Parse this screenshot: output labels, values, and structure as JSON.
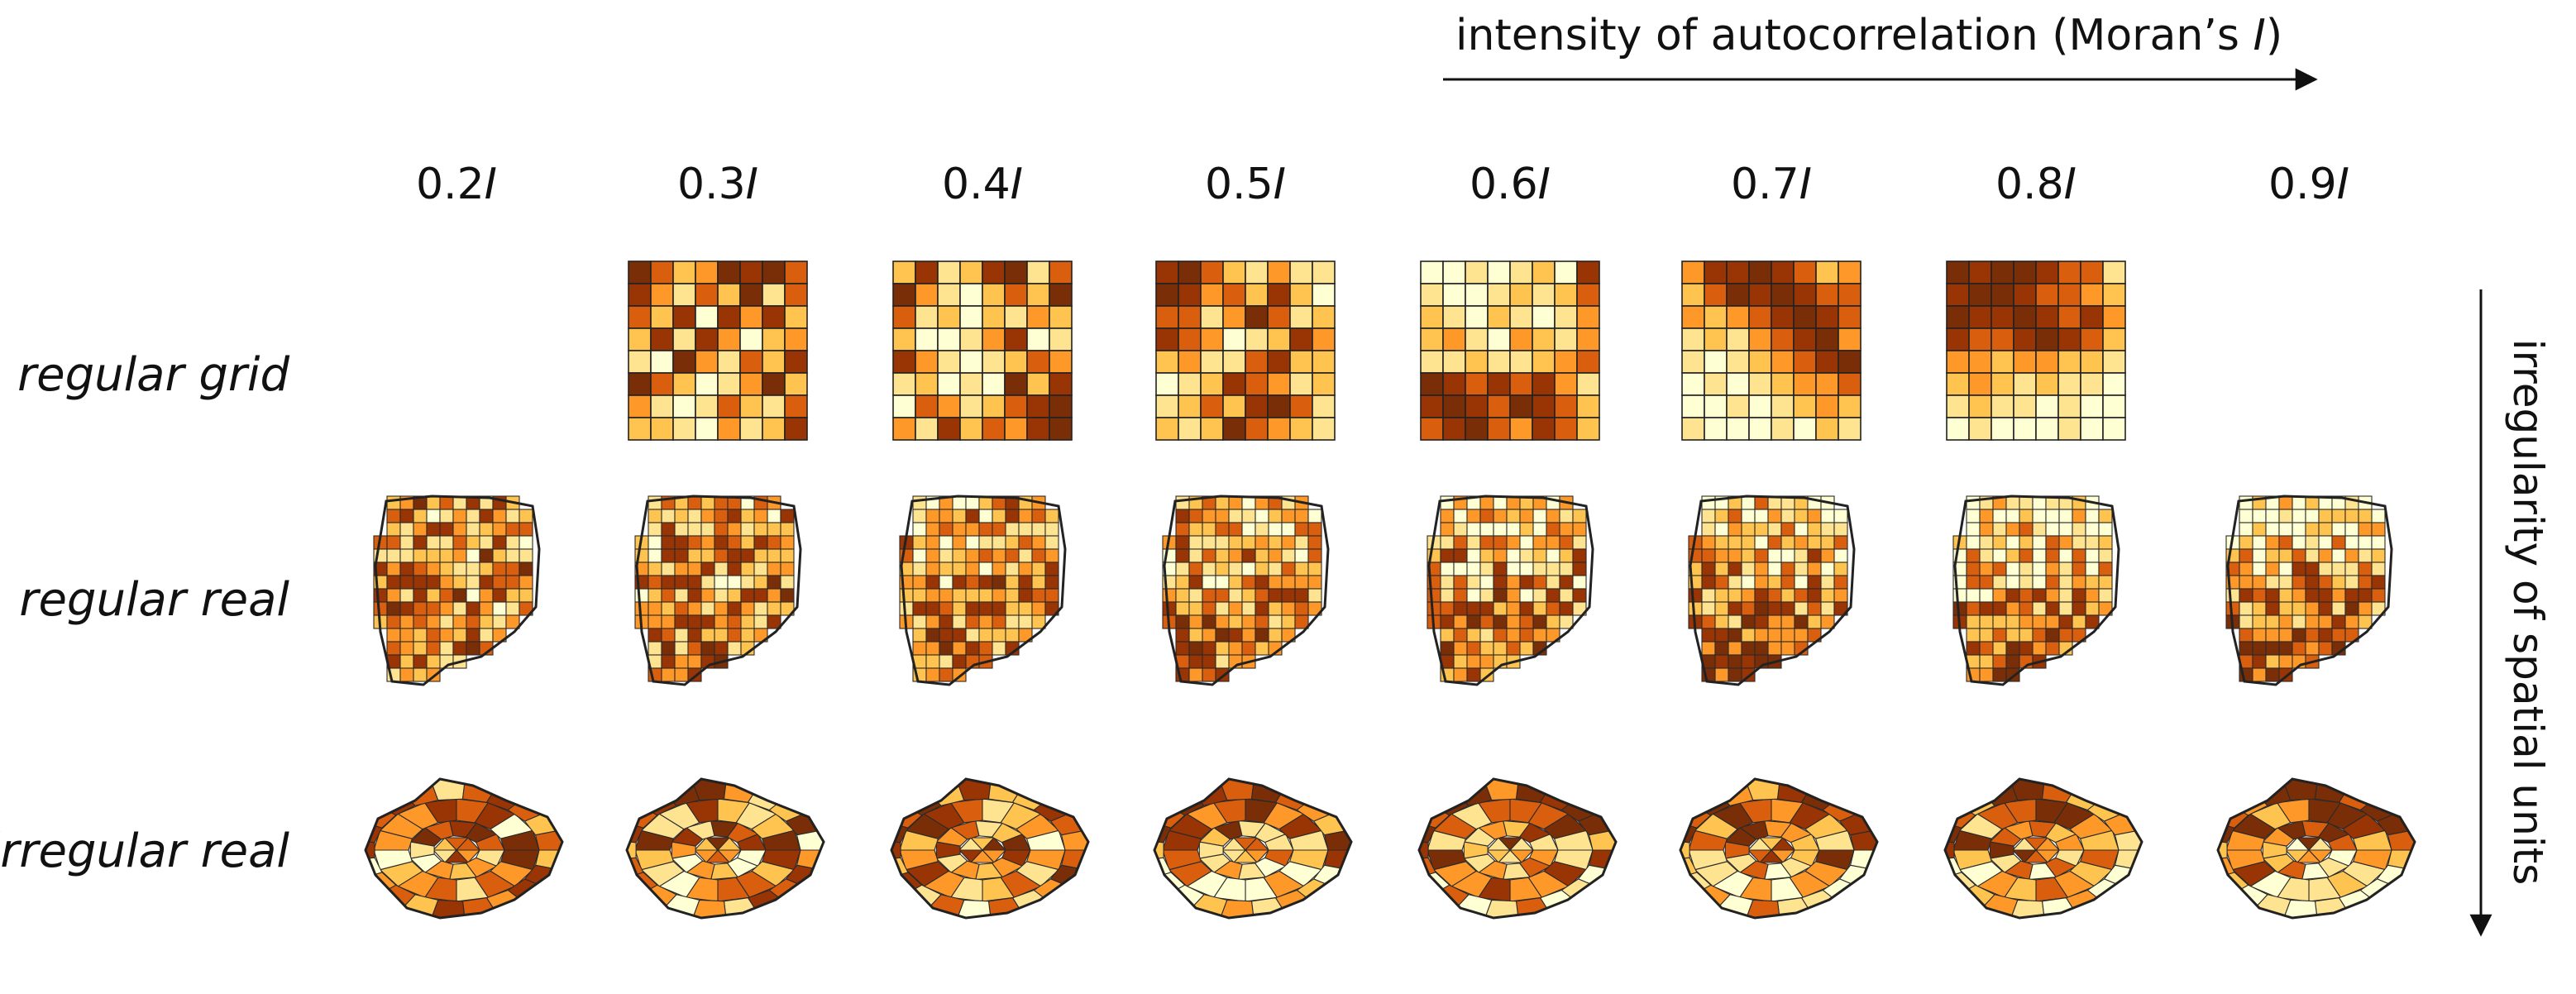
{
  "header": {
    "title_prefix": "intensity of autocorrelation (Moran’s ",
    "title_italic": "I",
    "title_suffix": ")"
  },
  "side_label": "irregularity of spatial units",
  "columns": [
    {
      "num": "0.2",
      "sym": "I"
    },
    {
      "num": "0.3",
      "sym": "I"
    },
    {
      "num": "0.4",
      "sym": "I"
    },
    {
      "num": "0.5",
      "sym": "I"
    },
    {
      "num": "0.6",
      "sym": "I"
    },
    {
      "num": "0.7",
      "sym": "I"
    },
    {
      "num": "0.8",
      "sym": "I"
    },
    {
      "num": "0.9",
      "sym": "I"
    }
  ],
  "rows": [
    {
      "label": "regular grid"
    },
    {
      "label": "regular real"
    },
    {
      "label": "irregular real"
    }
  ],
  "palette": [
    "#ffffd4",
    "#fee391",
    "#fec44f",
    "#fe9929",
    "#d95f0e",
    "#993404",
    "#7a2e08"
  ],
  "grid_values": [
    [
      0.0,
      0.0,
      0.0,
      0.0,
      0.0,
      0.0,
      0.0,
      0.0,
      0.0,
      0.0,
      0.0,
      0.0,
      0.0,
      0.0,
      0.0,
      0.0,
      0.0,
      0.0,
      0.0,
      0.0,
      0.0,
      0.0,
      0.0,
      0.0,
      0.0,
      0.0,
      0.0,
      0.0,
      0.0,
      0.0,
      0.0,
      0.0,
      0.0,
      0.0,
      0.0,
      0.0,
      0.0,
      0.0,
      0.0,
      0.0,
      0.0,
      0.0,
      0.0,
      0.0,
      0.0,
      0.0,
      0.0,
      0.0,
      0.0,
      0.0,
      0.0,
      0.0,
      0.0,
      0.0,
      0.0,
      0.0,
      0.0,
      0.0,
      0.0,
      0.0,
      0.0,
      0.0,
      0.0,
      0.0
    ],
    [
      6,
      4,
      2,
      3,
      6,
      5,
      6,
      4,
      5,
      3,
      1,
      4,
      2,
      6,
      1,
      4,
      4,
      2,
      5,
      0,
      5,
      3,
      5,
      2,
      2,
      5,
      1,
      5,
      3,
      0,
      2,
      3,
      1,
      0,
      6,
      3,
      1,
      4,
      2,
      5,
      6,
      4,
      2,
      0,
      1,
      3,
      6,
      2,
      3,
      1,
      0,
      1,
      4,
      2,
      1,
      4,
      2,
      2,
      1,
      0,
      3,
      1,
      2,
      5
    ],
    [
      2,
      5,
      1,
      2,
      5,
      6,
      1,
      4,
      6,
      3,
      1,
      0,
      2,
      4,
      2,
      6,
      4,
      1,
      2,
      0,
      2,
      1,
      3,
      2,
      2,
      0,
      0,
      1,
      3,
      5,
      0,
      1,
      5,
      3,
      1,
      0,
      1,
      2,
      4,
      3,
      1,
      2,
      0,
      1,
      0,
      6,
      2,
      5,
      0,
      4,
      3,
      1,
      2,
      4,
      5,
      6,
      3,
      1,
      5,
      2,
      4,
      3,
      5,
      6
    ],
    [
      5,
      6,
      4,
      2,
      1,
      3,
      1,
      1,
      6,
      5,
      3,
      4,
      2,
      5,
      2,
      0,
      4,
      4,
      1,
      3,
      6,
      4,
      1,
      2,
      5,
      4,
      3,
      0,
      1,
      2,
      5,
      3,
      2,
      3,
      1,
      1,
      4,
      5,
      2,
      2,
      0,
      1,
      2,
      5,
      4,
      3,
      1,
      2,
      1,
      2,
      4,
      2,
      5,
      6,
      4,
      1,
      2,
      1,
      2,
      6,
      4,
      3,
      2,
      1
    ],
    [
      0,
      0,
      1,
      0,
      1,
      2,
      0,
      5,
      1,
      0,
      0,
      1,
      2,
      1,
      2,
      4,
      2,
      1,
      0,
      2,
      1,
      0,
      1,
      3,
      2,
      3,
      1,
      0,
      3,
      2,
      1,
      3,
      1,
      1,
      2,
      1,
      1,
      2,
      3,
      4,
      6,
      5,
      4,
      5,
      4,
      5,
      3,
      1,
      5,
      6,
      5,
      4,
      6,
      5,
      4,
      2,
      4,
      5,
      6,
      4,
      3,
      5,
      4,
      2
    ],
    [
      3,
      5,
      5,
      6,
      5,
      4,
      2,
      3,
      2,
      4,
      6,
      5,
      6,
      5,
      4,
      4,
      3,
      2,
      3,
      4,
      5,
      6,
      5,
      4,
      1,
      2,
      1,
      3,
      4,
      5,
      6,
      3,
      1,
      0,
      1,
      2,
      3,
      4,
      5,
      6,
      0,
      1,
      0,
      1,
      2,
      3,
      3,
      4,
      0,
      0,
      1,
      0,
      1,
      2,
      3,
      2,
      1,
      0,
      0,
      0,
      1,
      0,
      2,
      1
    ],
    [
      6,
      5,
      6,
      6,
      5,
      4,
      4,
      1,
      5,
      6,
      6,
      5,
      4,
      4,
      3,
      2,
      6,
      5,
      5,
      6,
      5,
      4,
      5,
      3,
      5,
      4,
      4,
      5,
      6,
      5,
      4,
      2,
      3,
      3,
      2,
      3,
      3,
      2,
      2,
      1,
      2,
      3,
      2,
      1,
      2,
      1,
      1,
      0,
      1,
      2,
      1,
      1,
      0,
      1,
      0,
      0,
      0,
      1,
      0,
      0,
      0,
      1,
      0,
      0
    ],
    [
      0.0,
      0.0,
      0.0,
      0.0,
      0.0,
      0.0,
      0.0,
      0.0,
      0.0,
      0.0,
      0.0,
      0.0,
      0.0,
      0.0,
      0.0,
      0.0,
      0.0,
      0.0,
      0.0,
      0.0,
      0.0,
      0.0,
      0.0,
      0.0,
      0.0,
      0.0,
      0.0,
      0.0,
      0.0,
      0.0,
      0.0,
      0.0,
      0.0,
      0.0,
      0.0,
      0.0,
      0.0,
      0.0,
      0.0,
      0.0,
      0.0,
      0.0,
      0.0,
      0.0,
      0.0,
      0.0,
      0.0,
      0.0,
      0.0,
      0.0,
      0.0,
      0.0,
      0.0,
      0.0,
      0.0,
      0.0,
      0.0,
      0.0,
      0.0,
      0.0,
      0.0,
      0.0,
      0.0,
      0.0
    ]
  ],
  "grid_present": [
    false,
    true,
    true,
    true,
    true,
    true,
    true,
    false
  ]
}
